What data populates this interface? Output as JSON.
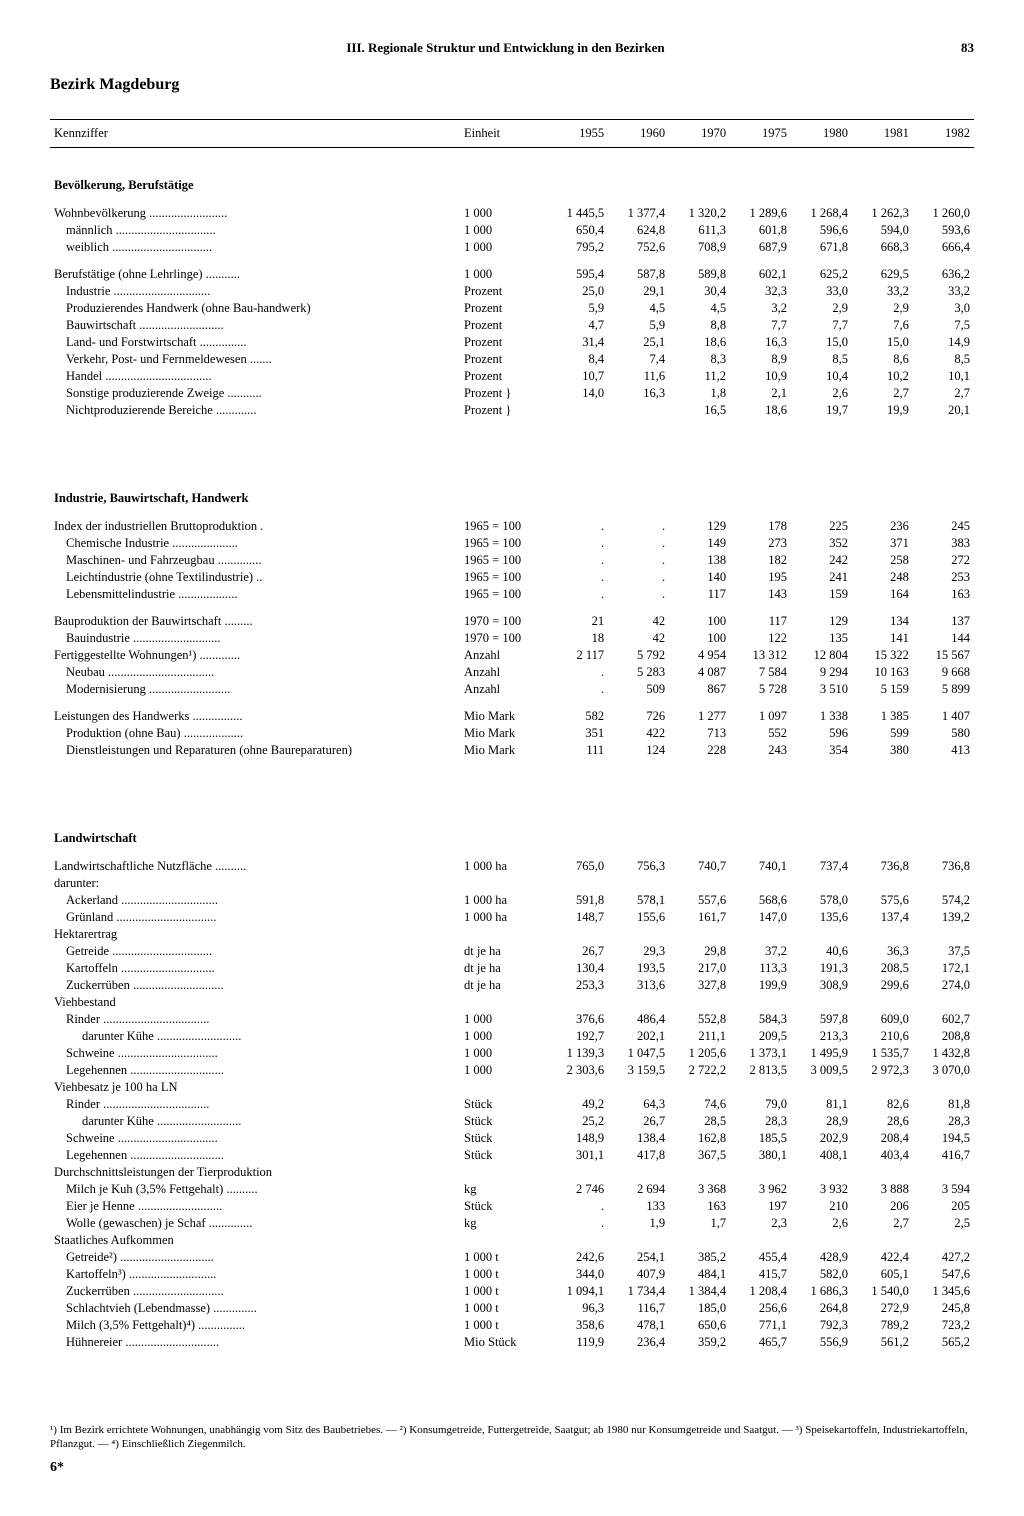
{
  "header": {
    "section": "III. Regionale Struktur und Entwicklung in den Bezirken",
    "page": "83"
  },
  "district": "Bezirk Magdeburg",
  "columns": [
    "Kennziffer",
    "Einheit",
    "1955",
    "1960",
    "1970",
    "1975",
    "1980",
    "1981",
    "1982"
  ],
  "sections": [
    {
      "title": "Bevölkerung, Berufstätige",
      "groups": [
        {
          "rows": [
            {
              "label": "Wohnbevölkerung",
              "unit": "1 000",
              "v": [
                "1 445,5",
                "1 377,4",
                "1 320,2",
                "1 289,6",
                "1 268,4",
                "1 262,3",
                "1 260,0"
              ]
            },
            {
              "label": "männlich",
              "indent": 1,
              "unit": "1 000",
              "v": [
                "650,4",
                "624,8",
                "611,3",
                "601,8",
                "596,6",
                "594,0",
                "593,6"
              ]
            },
            {
              "label": "weiblich",
              "indent": 1,
              "unit": "1 000",
              "v": [
                "795,2",
                "752,6",
                "708,9",
                "687,9",
                "671,8",
                "668,3",
                "666,4"
              ]
            }
          ]
        },
        {
          "rows": [
            {
              "label": "Berufstätige (ohne Lehrlinge)",
              "unit": "1 000",
              "v": [
                "595,4",
                "587,8",
                "589,8",
                "602,1",
                "625,2",
                "629,5",
                "636,2"
              ]
            },
            {
              "label": "Industrie",
              "indent": 1,
              "unit": "Prozent",
              "v": [
                "25,0",
                "29,1",
                "30,4",
                "32,3",
                "33,0",
                "33,2",
                "33,2"
              ]
            },
            {
              "label": "Produzierendes Handwerk (ohne Bau-handwerk)",
              "indent": 1,
              "unit": "Prozent",
              "v": [
                "5,9",
                "4,5",
                "4,5",
                "3,2",
                "2,9",
                "2,9",
                "3,0"
              ]
            },
            {
              "label": "Bauwirtschaft",
              "indent": 1,
              "unit": "Prozent",
              "v": [
                "4,7",
                "5,9",
                "8,8",
                "7,7",
                "7,7",
                "7,6",
                "7,5"
              ]
            },
            {
              "label": "Land- und Forstwirtschaft",
              "indent": 1,
              "unit": "Prozent",
              "v": [
                "31,4",
                "25,1",
                "18,6",
                "16,3",
                "15,0",
                "15,0",
                "14,9"
              ]
            },
            {
              "label": "Verkehr, Post- und Fernmeldewesen",
              "indent": 1,
              "unit": "Prozent",
              "v": [
                "8,4",
                "7,4",
                "8,3",
                "8,9",
                "8,5",
                "8,6",
                "8,5"
              ]
            },
            {
              "label": "Handel",
              "indent": 1,
              "unit": "Prozent",
              "v": [
                "10,7",
                "11,6",
                "11,2",
                "10,9",
                "10,4",
                "10,2",
                "10,1"
              ]
            },
            {
              "label": "Sonstige produzierende Zweige",
              "indent": 1,
              "unit": "Prozent }",
              "v": [
                "14,0",
                "16,3",
                "1,8",
                "2,1",
                "2,6",
                "2,7",
                "2,7"
              ]
            },
            {
              "label": "Nichtproduzierende Bereiche",
              "indent": 1,
              "unit": "Prozent }",
              "v": [
                "",
                "",
                "16,5",
                "18,6",
                "19,7",
                "19,9",
                "20,1"
              ]
            }
          ]
        }
      ]
    },
    {
      "title": "Industrie, Bauwirtschaft, Handwerk",
      "groups": [
        {
          "rows": [
            {
              "label": "Index der industriellen Bruttoproduktion .",
              "unit": "1965 = 100",
              "v": [
                ".",
                ".",
                "129",
                "178",
                "225",
                "236",
                "245"
              ]
            },
            {
              "label": "Chemische Industrie",
              "indent": 1,
              "unit": "1965 = 100",
              "v": [
                ".",
                ".",
                "149",
                "273",
                "352",
                "371",
                "383"
              ]
            },
            {
              "label": "Maschinen- und Fahrzeugbau",
              "indent": 1,
              "unit": "1965 = 100",
              "v": [
                ".",
                ".",
                "138",
                "182",
                "242",
                "258",
                "272"
              ]
            },
            {
              "label": "Leichtindustrie (ohne Textilindustrie)",
              "indent": 1,
              "unit": "1965 = 100",
              "v": [
                ".",
                ".",
                "140",
                "195",
                "241",
                "248",
                "253"
              ]
            },
            {
              "label": "Lebensmittelindustrie",
              "indent": 1,
              "unit": "1965 = 100",
              "v": [
                ".",
                ".",
                "117",
                "143",
                "159",
                "164",
                "163"
              ]
            }
          ]
        },
        {
          "rows": [
            {
              "label": "Bauproduktion der Bauwirtschaft",
              "unit": "1970 = 100",
              "v": [
                "21",
                "42",
                "100",
                "117",
                "129",
                "134",
                "137"
              ]
            },
            {
              "label": "Bauindustrie",
              "indent": 1,
              "unit": "1970 = 100",
              "v": [
                "18",
                "42",
                "100",
                "122",
                "135",
                "141",
                "144"
              ]
            },
            {
              "label": "Fertiggestellte Wohnungen¹)",
              "unit": "Anzahl",
              "v": [
                "2 117",
                "5 792",
                "4 954",
                "13 312",
                "12 804",
                "15 322",
                "15 567"
              ]
            },
            {
              "label": "Neubau",
              "indent": 1,
              "unit": "Anzahl",
              "v": [
                ".",
                "5 283",
                "4 087",
                "7 584",
                "9 294",
                "10 163",
                "9 668"
              ]
            },
            {
              "label": "Modernisierung",
              "indent": 1,
              "unit": "Anzahl",
              "v": [
                ".",
                "509",
                "867",
                "5 728",
                "3 510",
                "5 159",
                "5 899"
              ]
            }
          ]
        },
        {
          "rows": [
            {
              "label": "Leistungen des Handwerks",
              "unit": "Mio Mark",
              "v": [
                "582",
                "726",
                "1 277",
                "1 097",
                "1 338",
                "1 385",
                "1 407"
              ]
            },
            {
              "label": "Produktion (ohne Bau)",
              "indent": 1,
              "unit": "Mio Mark",
              "v": [
                "351",
                "422",
                "713",
                "552",
                "596",
                "599",
                "580"
              ]
            },
            {
              "label": "Dienstleistungen und Reparaturen (ohne Baureparaturen)",
              "indent": 1,
              "unit": "Mio Mark",
              "v": [
                "111",
                "124",
                "228",
                "243",
                "354",
                "380",
                "413"
              ]
            }
          ]
        }
      ]
    },
    {
      "title": "Landwirtschaft",
      "groups": [
        {
          "rows": [
            {
              "label": "Landwirtschaftliche Nutzfläche",
              "unit": "1 000 ha",
              "v": [
                "765,0",
                "756,3",
                "740,7",
                "740,1",
                "737,4",
                "736,8",
                "736,8"
              ]
            },
            {
              "label": "darunter:",
              "v": [
                "",
                "",
                "",
                "",
                "",
                "",
                ""
              ]
            },
            {
              "label": "Ackerland",
              "indent": 1,
              "unit": "1 000 ha",
              "v": [
                "591,8",
                "578,1",
                "557,6",
                "568,6",
                "578,0",
                "575,6",
                "574,2"
              ]
            },
            {
              "label": "Grünland",
              "indent": 1,
              "unit": "1 000 ha",
              "v": [
                "148,7",
                "155,6",
                "161,7",
                "147,0",
                "135,6",
                "137,4",
                "139,2"
              ]
            },
            {
              "label": "Hektarertrag",
              "v": [
                "",
                "",
                "",
                "",
                "",
                "",
                ""
              ]
            },
            {
              "label": "Getreide",
              "indent": 1,
              "unit": "dt je ha",
              "v": [
                "26,7",
                "29,3",
                "29,8",
                "37,2",
                "40,6",
                "36,3",
                "37,5"
              ]
            },
            {
              "label": "Kartoffeln",
              "indent": 1,
              "unit": "dt je ha",
              "v": [
                "130,4",
                "193,5",
                "217,0",
                "113,3",
                "191,3",
                "208,5",
                "172,1"
              ]
            },
            {
              "label": "Zuckerrüben",
              "indent": 1,
              "unit": "dt je ha",
              "v": [
                "253,3",
                "313,6",
                "327,8",
                "199,9",
                "308,9",
                "299,6",
                "274,0"
              ]
            },
            {
              "label": "Viehbestand",
              "v": [
                "",
                "",
                "",
                "",
                "",
                "",
                ""
              ]
            },
            {
              "label": "Rinder",
              "indent": 1,
              "unit": "1 000",
              "v": [
                "376,6",
                "486,4",
                "552,8",
                "584,3",
                "597,8",
                "609,0",
                "602,7"
              ]
            },
            {
              "label": "darunter Kühe",
              "indent": 2,
              "unit": "1 000",
              "v": [
                "192,7",
                "202,1",
                "211,1",
                "209,5",
                "213,3",
                "210,6",
                "208,8"
              ]
            },
            {
              "label": "Schweine",
              "indent": 1,
              "unit": "1 000",
              "v": [
                "1 139,3",
                "1 047,5",
                "1 205,6",
                "1 373,1",
                "1 495,9",
                "1 535,7",
                "1 432,8"
              ]
            },
            {
              "label": "Legehennen",
              "indent": 1,
              "unit": "1 000",
              "v": [
                "2 303,6",
                "3 159,5",
                "2 722,2",
                "2 813,5",
                "3 009,5",
                "2 972,3",
                "3 070,0"
              ]
            },
            {
              "label": "Viehbesatz je 100 ha LN",
              "v": [
                "",
                "",
                "",
                "",
                "",
                "",
                ""
              ]
            },
            {
              "label": "Rinder",
              "indent": 1,
              "unit": "Stück",
              "v": [
                "49,2",
                "64,3",
                "74,6",
                "79,0",
                "81,1",
                "82,6",
                "81,8"
              ]
            },
            {
              "label": "darunter Kühe",
              "indent": 2,
              "unit": "Stück",
              "v": [
                "25,2",
                "26,7",
                "28,5",
                "28,3",
                "28,9",
                "28,6",
                "28,3"
              ]
            },
            {
              "label": "Schweine",
              "indent": 1,
              "unit": "Stück",
              "v": [
                "148,9",
                "138,4",
                "162,8",
                "185,5",
                "202,9",
                "208,4",
                "194,5"
              ]
            },
            {
              "label": "Legehennen",
              "indent": 1,
              "unit": "Stück",
              "v": [
                "301,1",
                "417,8",
                "367,5",
                "380,1",
                "408,1",
                "403,4",
                "416,7"
              ]
            },
            {
              "label": "Durchschnittsleistungen der Tierproduktion",
              "v": [
                "",
                "",
                "",
                "",
                "",
                "",
                ""
              ]
            },
            {
              "label": "Milch je Kuh (3,5% Fettgehalt)",
              "indent": 1,
              "unit": "kg",
              "v": [
                "2 746",
                "2 694",
                "3 368",
                "3 962",
                "3 932",
                "3 888",
                "3 594"
              ]
            },
            {
              "label": "Eier je Henne",
              "indent": 1,
              "unit": "Stück",
              "v": [
                ".",
                "133",
                "163",
                "197",
                "210",
                "206",
                "205"
              ]
            },
            {
              "label": "Wolle (gewaschen) je Schaf",
              "indent": 1,
              "unit": "kg",
              "v": [
                ".",
                "1,9",
                "1,7",
                "2,3",
                "2,6",
                "2,7",
                "2,5"
              ]
            },
            {
              "label": "Staatliches Aufkommen",
              "v": [
                "",
                "",
                "",
                "",
                "",
                "",
                ""
              ]
            },
            {
              "label": "Getreide²)",
              "indent": 1,
              "unit": "1 000 t",
              "v": [
                "242,6",
                "254,1",
                "385,2",
                "455,4",
                "428,9",
                "422,4",
                "427,2"
              ]
            },
            {
              "label": "Kartoffeln³)",
              "indent": 1,
              "unit": "1 000 t",
              "v": [
                "344,0",
                "407,9",
                "484,1",
                "415,7",
                "582,0",
                "605,1",
                "547,6"
              ]
            },
            {
              "label": "Zuckerrüben",
              "indent": 1,
              "unit": "1 000 t",
              "v": [
                "1 094,1",
                "1 734,4",
                "1 384,4",
                "1 208,4",
                "1 686,3",
                "1 540,0",
                "1 345,6"
              ]
            },
            {
              "label": "Schlachtvieh (Lebendmasse)",
              "indent": 1,
              "unit": "1 000 t",
              "v": [
                "96,3",
                "116,7",
                "185,0",
                "256,6",
                "264,8",
                "272,9",
                "245,8"
              ]
            },
            {
              "label": "Milch (3,5% Fettgehalt)⁴)",
              "indent": 1,
              "unit": "1 000 t",
              "v": [
                "358,6",
                "478,1",
                "650,6",
                "771,1",
                "792,3",
                "789,2",
                "723,2"
              ]
            },
            {
              "label": "Hühnereier",
              "indent": 1,
              "unit": "Mio Stück",
              "v": [
                "119,9",
                "236,4",
                "359,2",
                "465,7",
                "556,9",
                "561,2",
                "565,2"
              ]
            }
          ]
        }
      ]
    }
  ],
  "footnotes": "¹) Im Bezirk errichtete Wohnungen, unabhängig vom Sitz des Baubetriebes. — ²) Konsumgetreide, Futtergetreide, Saatgut; ab 1980 nur Konsumgetreide und Saatgut. — ³) Speisekartoffeln, Industriekartoffeln, Pflanzgut. — ⁴) Einschließlich Ziegenmilch.",
  "signature": "6*"
}
